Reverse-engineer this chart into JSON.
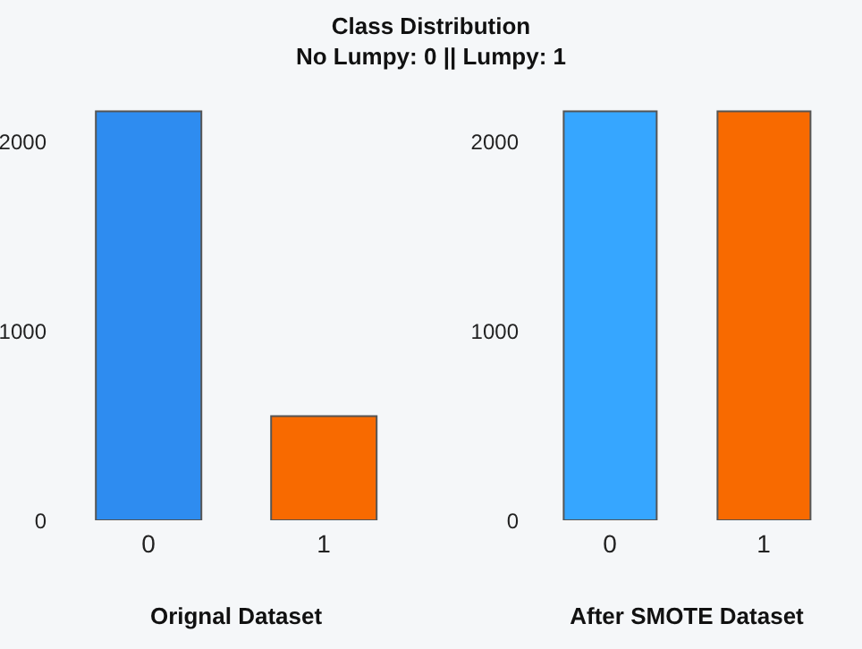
{
  "chart_data": [
    {
      "type": "bar",
      "title": "Class Distribution",
      "subtitle": "No Lumpy: 0 || Lumpy: 1",
      "xlabel": "Orignal Dataset",
      "categories": [
        "0",
        "1"
      ],
      "values": [
        2160,
        550
      ],
      "colors": [
        "#2e8cf0",
        "#f86a00"
      ],
      "ylim": [
        0,
        2200
      ],
      "yticks": [
        0,
        1000,
        2000
      ],
      "grid": false
    },
    {
      "type": "bar",
      "xlabel": "After SMOTE Dataset",
      "categories": [
        "0",
        "1"
      ],
      "values": [
        2160,
        2160
      ],
      "colors": [
        "#36a6ff",
        "#f86a00"
      ],
      "ylim": [
        0,
        2200
      ],
      "yticks": [
        0,
        1000,
        2000
      ],
      "grid": false
    }
  ]
}
